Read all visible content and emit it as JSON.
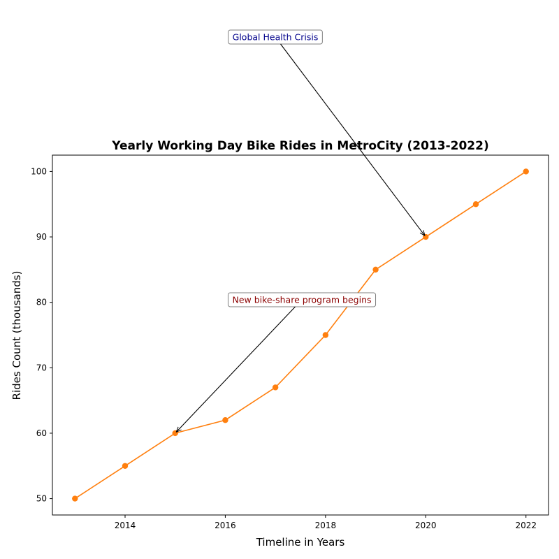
{
  "chart_data": {
    "type": "line",
    "title": "Yearly Working Day Bike Rides in MetroCity (2013-2022)",
    "xlabel": "Timeline in Years",
    "ylabel": "Rides Count (thousands)",
    "x": [
      2013,
      2014,
      2015,
      2016,
      2017,
      2018,
      2019,
      2020,
      2021,
      2022
    ],
    "series": [
      {
        "values": [
          50,
          55,
          60,
          62,
          67,
          75,
          85,
          90,
          95,
          100
        ],
        "color": "#ff7f0e",
        "marker": "circle"
      }
    ],
    "xlim": [
      2012.55,
      2022.45
    ],
    "ylim": [
      47.5,
      102.5
    ],
    "xticks": [
      2014,
      2016,
      2018,
      2020,
      2022
    ],
    "yticks": [
      50,
      60,
      70,
      80,
      90,
      100
    ],
    "grid": false,
    "legend": "none",
    "annotations": [
      {
        "text": "Global Health Crisis",
        "x": 2020,
        "y": 90,
        "text_color": "#00008b"
      },
      {
        "text": "New bike-share program begins",
        "x": 2015,
        "y": 60,
        "text_color": "#8b0000"
      }
    ]
  }
}
